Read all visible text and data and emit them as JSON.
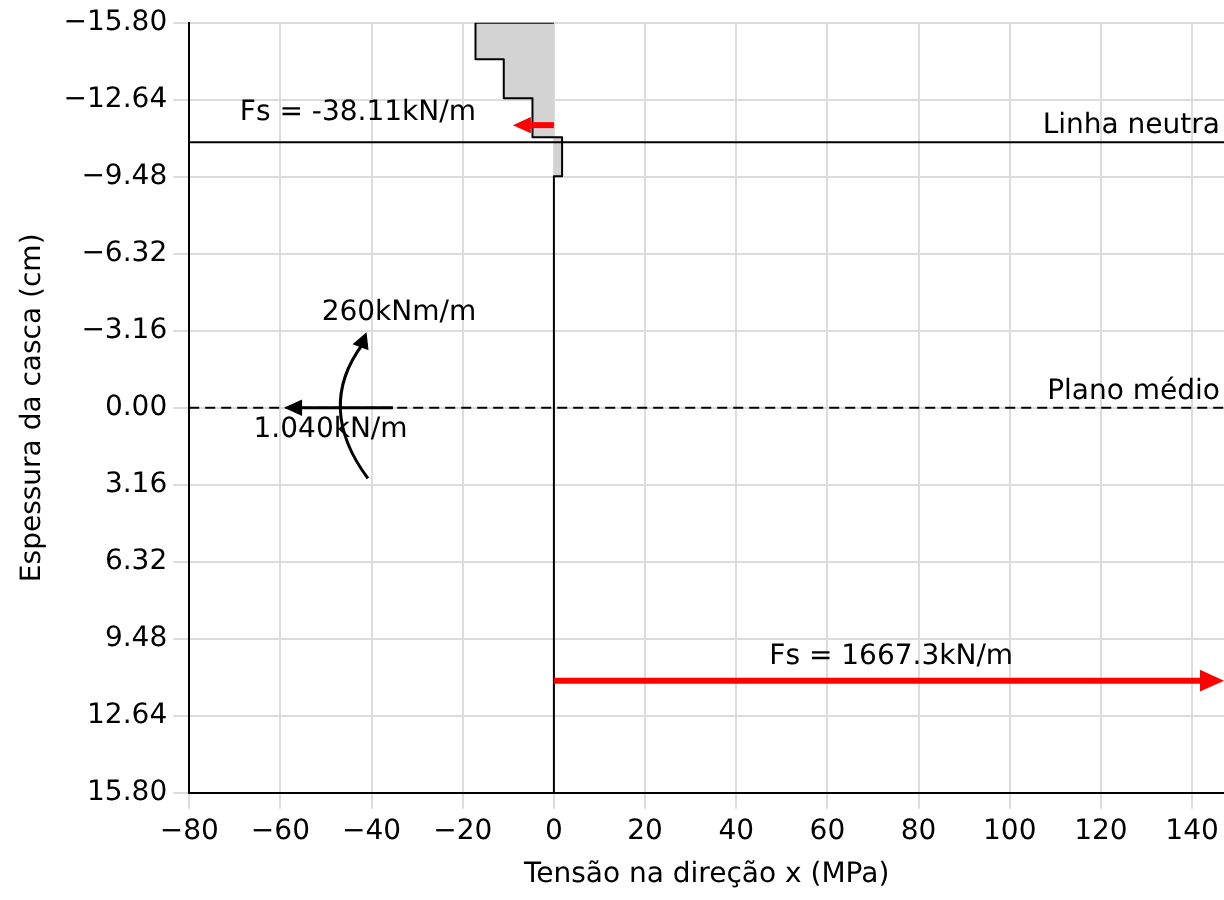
{
  "chart_data": {
    "type": "area",
    "xlabel": "Tensão na direção x (MPa)",
    "ylabel": "Espessura da casca (cm)",
    "series": [
      {
        "color": "#d3d3d3",
        "x": [
          0,
          -17.2,
          -17.2,
          -11,
          -11,
          -4.7,
          -4.7,
          1.8,
          1.8,
          0,
          0
        ],
        "values": [
          -15.8,
          -15.8,
          -14.3,
          -14.3,
          -12.7,
          -12.7,
          -11.1,
          -11.1,
          -9.5,
          -9.5,
          15.8
        ]
      }
    ],
    "xlim": [
      -80,
      147
    ],
    "xticks": [
      {
        "value": -80,
        "label": "−80"
      },
      {
        "value": -60,
        "label": "−60"
      },
      {
        "value": -40,
        "label": "−40"
      },
      {
        "value": -20,
        "label": "−20"
      },
      0,
      20,
      40,
      60,
      80,
      100,
      120,
      140
    ],
    "ylim": [
      15.8,
      -15.8
    ],
    "yticks": [
      {
        "value": -15.8,
        "label": "−15.80"
      },
      {
        "value": -12.64,
        "label": "−12.64"
      },
      {
        "value": -9.48,
        "label": "−9.48"
      },
      {
        "value": -6.32,
        "label": "−6.32"
      },
      {
        "value": -3.16,
        "label": "−3.16"
      },
      {
        "value": 0,
        "label": "0.00"
      },
      {
        "value": 3.16,
        "label": "3.16"
      },
      {
        "value": 6.32,
        "label": "6.32"
      },
      {
        "value": 9.48,
        "label": "9.48"
      },
      {
        "value": 12.64,
        "label": "12.64"
      },
      {
        "value": 15.8,
        "label": "15.80"
      }
    ],
    "ref_lines": [
      {
        "axis": "y",
        "value": -10.9,
        "label": "Linha neutra",
        "color": "#000000",
        "line_style": "solid"
      },
      {
        "axis": "y",
        "value": 0,
        "label": "Plano médio",
        "color": "#000000",
        "line_style": "dashed"
      }
    ],
    "annotations": [
      "Fs = -38.11kN/m",
      "Fs = 1667.3kN/m",
      "260kNm/m",
      "1.040kN/m"
    ],
    "grid": true,
    "legend": false
  }
}
